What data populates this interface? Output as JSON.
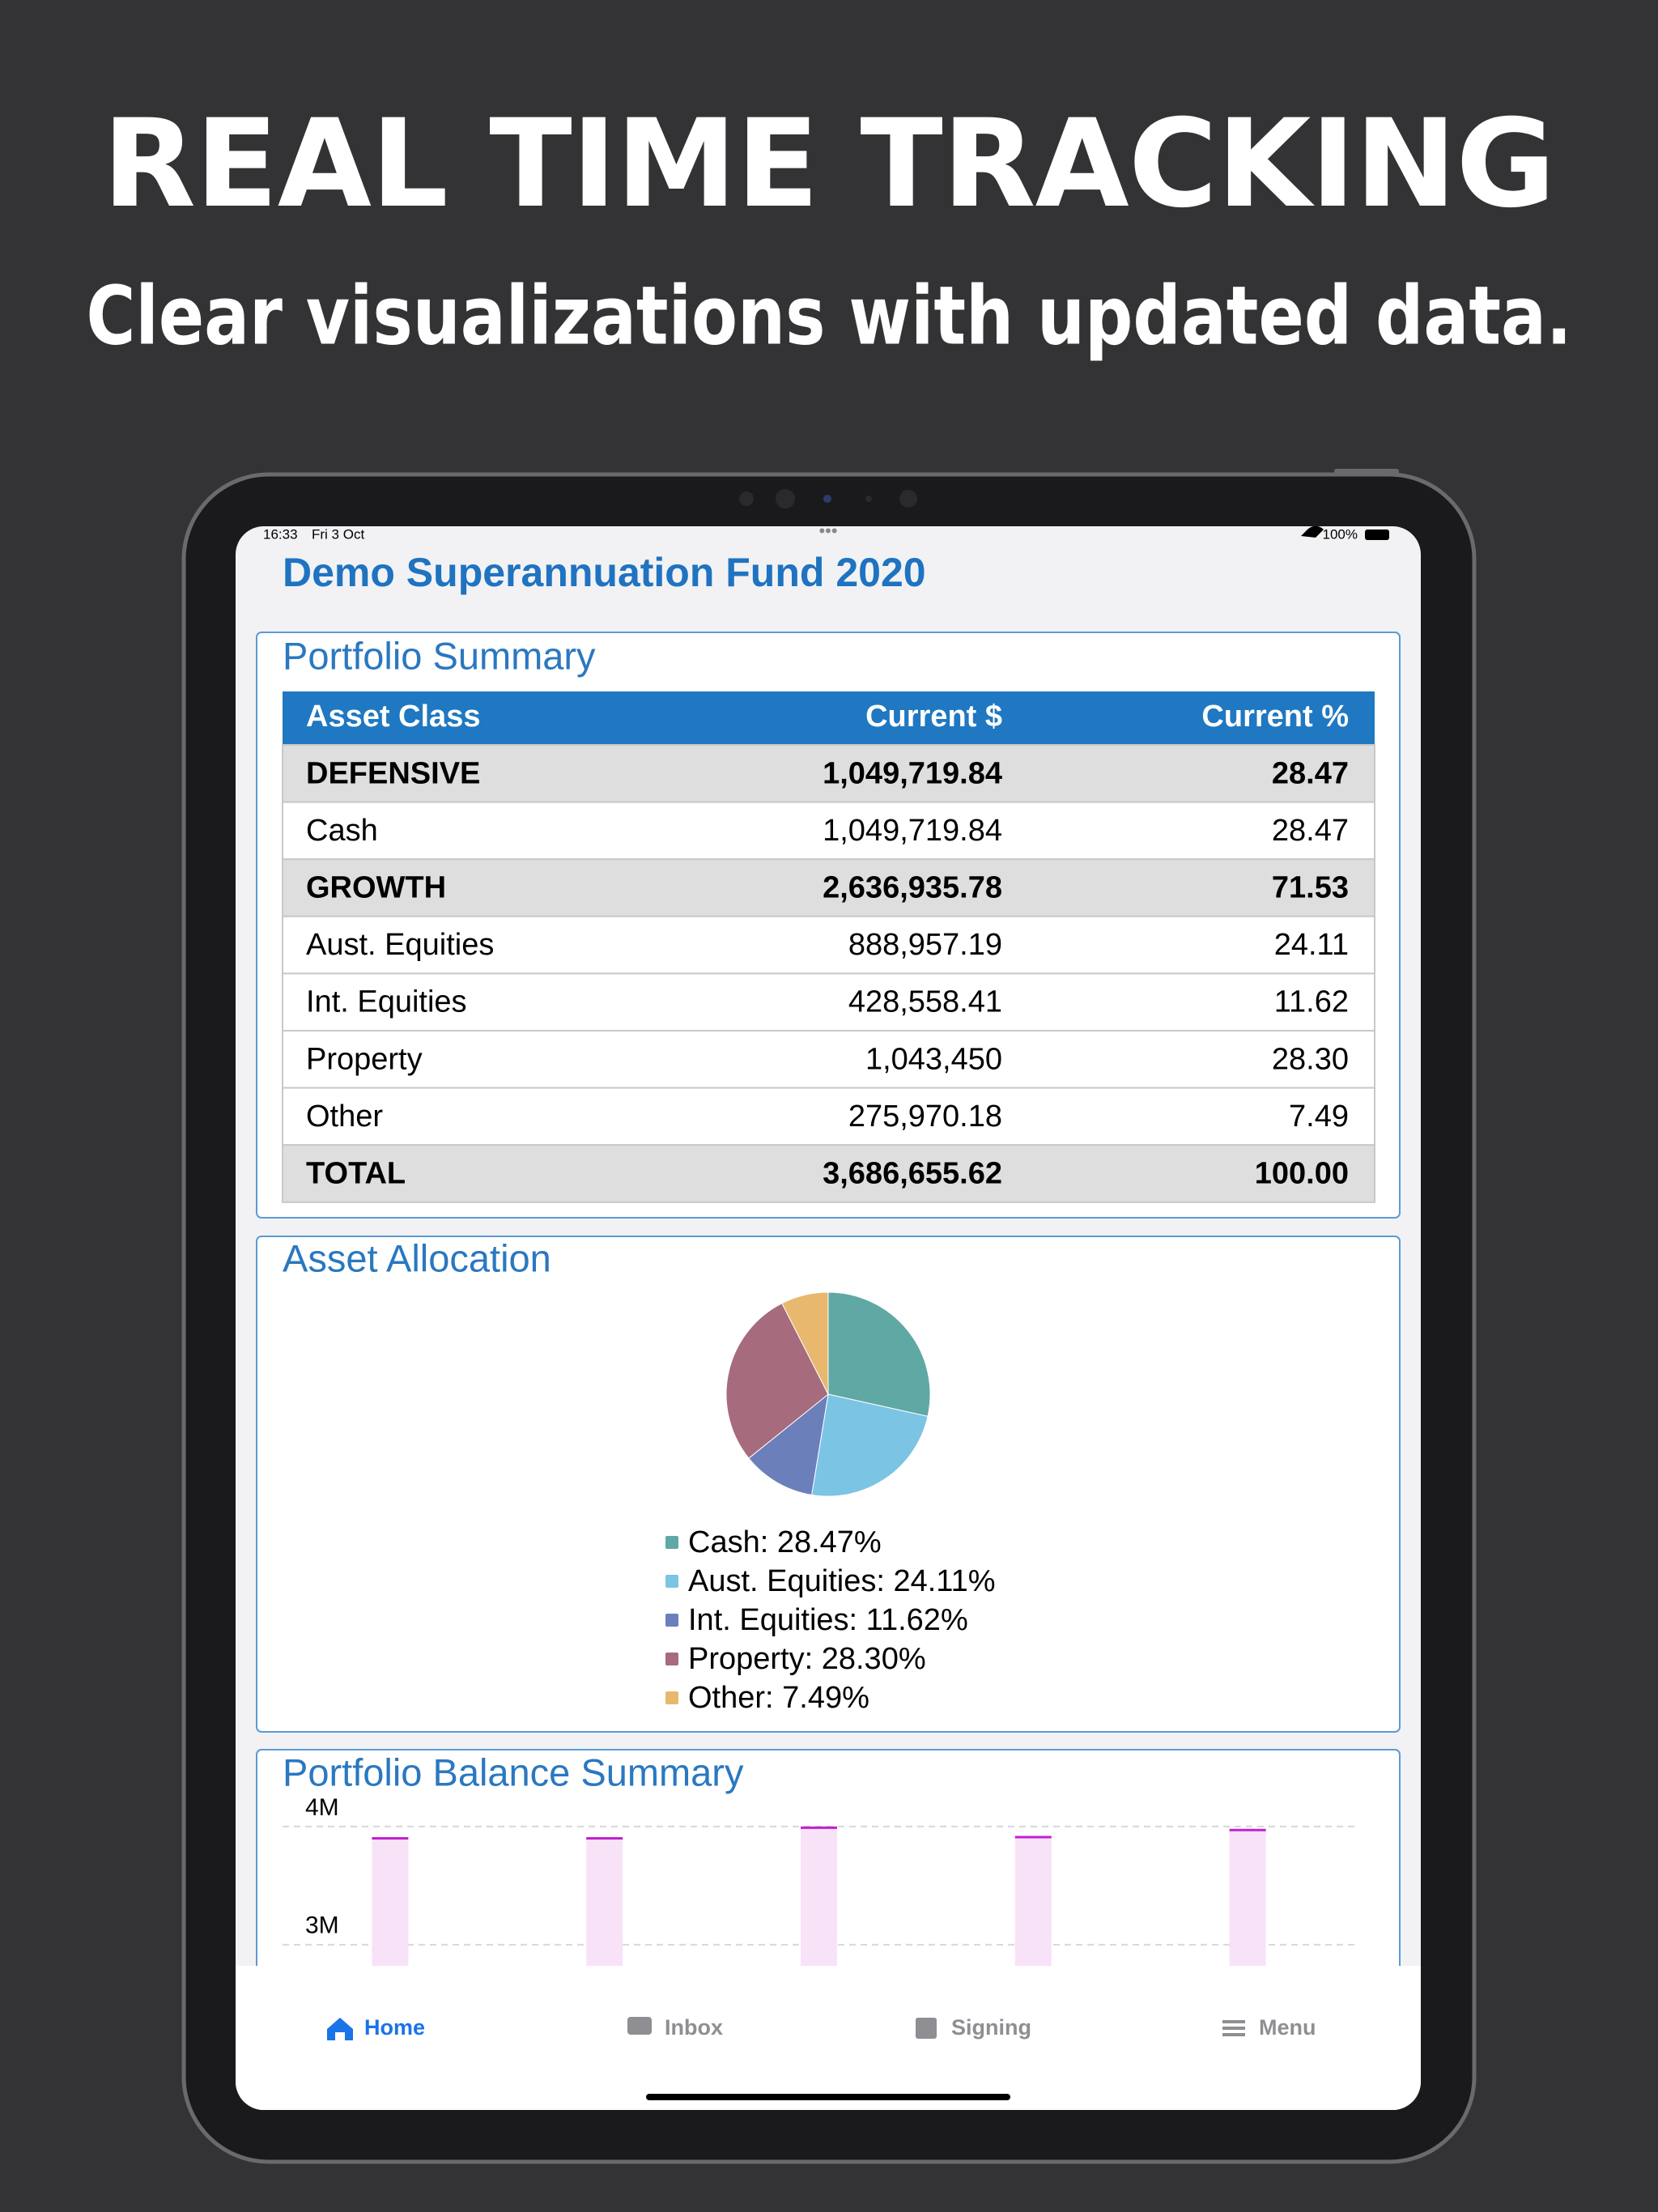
{
  "header": {
    "title": "REAL TIME TRACKING",
    "subtitle": "Clear visualizations with updated data."
  },
  "status_bar": {
    "time": "16:33",
    "date": "Fri 3 Oct",
    "battery": "100%"
  },
  "app_title": "Demo Superannuation Fund 2020",
  "portfolio_summary": {
    "title": "Portfolio Summary",
    "columns": [
      "Asset Class",
      "Current $",
      "Current %"
    ],
    "rows": [
      [
        "DEFENSIVE",
        "1,049,719.84",
        "28.47"
      ],
      [
        "Cash",
        "1,049,719.84",
        "28.47"
      ],
      [
        "GROWTH",
        "2,636,935.78",
        "71.53"
      ],
      [
        "Aust. Equities",
        "888,957.19",
        "24.11"
      ],
      [
        "Int. Equities",
        "428,558.41",
        "11.62"
      ],
      [
        "Property",
        "1,043,450",
        "28.30"
      ],
      [
        "Other",
        "275,970.18",
        "7.49"
      ],
      [
        "TOTAL",
        "3,686,655.62",
        "100.00"
      ]
    ]
  },
  "asset_allocation": {
    "title": "Asset Allocation",
    "chart": {
      "type": "pie",
      "values": [
        28.47,
        24.11,
        11.62,
        28.3,
        7.49
      ],
      "value_labels": [
        "Cash: 28.47%",
        "Aust. Equities: 24.11%",
        "Int. Equities: 11.62%",
        "Property: 28.30%",
        "Other: 7.49%"
      ],
      "colors": [
        "#5fa8a4",
        "#7cc4e4",
        "#6b7fba",
        "#a66b7c",
        "#e8b86e"
      ]
    }
  },
  "portfolio_balance_summary": {
    "title": "Portfolio Balance Summary",
    "chart": {
      "type": "bar",
      "values": [
        3900000,
        3900000,
        3990000,
        3910000,
        3970000
      ],
      "ylim": [
        2800000,
        4150000
      ],
      "yticks": [
        {
          "value": 3000000,
          "label": "3M"
        },
        {
          "value": 4000000,
          "label": "4M"
        }
      ],
      "grid": true,
      "color": "#f8e2f8",
      "edge_color": "#c21fd0"
    }
  },
  "tab_bar": {
    "items": [
      "Home",
      "Inbox",
      "Signing",
      "Menu"
    ]
  }
}
